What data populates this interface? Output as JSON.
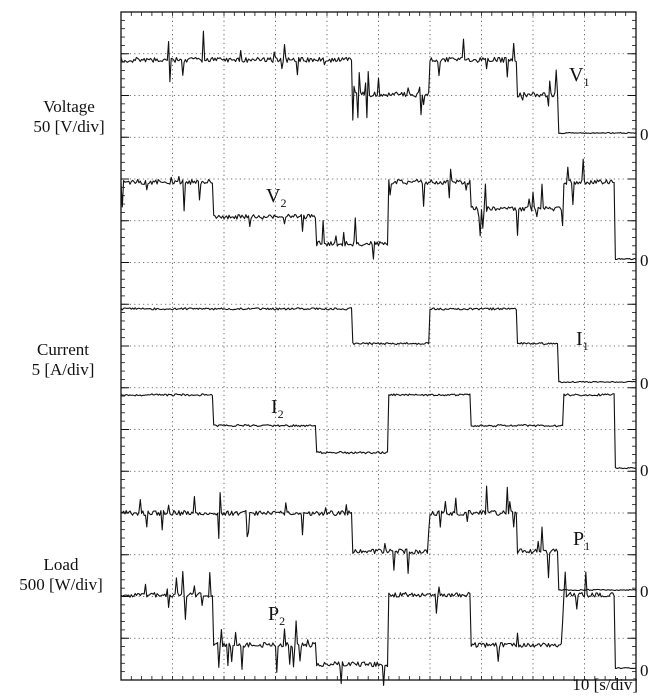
{
  "chart_data": {
    "type": "line",
    "x_scale_label": "10 [s/div]",
    "x_divisions": 10,
    "channel_groups": [
      {
        "name": "Voltage",
        "scale": "50 [V/div]"
      },
      {
        "name": "Current",
        "scale": "5 [A/div]"
      },
      {
        "name": "Load",
        "scale": "500 [W/div]"
      }
    ],
    "zero_marker": "0",
    "series": [
      {
        "name": "V",
        "sub": "1",
        "group": "Voltage",
        "noise": "high",
        "steps": [
          [
            0,
            1.9
          ],
          [
            45,
            1.0
          ],
          [
            60,
            1.9
          ],
          [
            77,
            1.0
          ],
          [
            85,
            0.0
          ]
        ]
      },
      {
        "name": "V",
        "sub": "2",
        "group": "Voltage",
        "noise": "high",
        "steps": [
          [
            0,
            2.0
          ],
          [
            18,
            1.1
          ],
          [
            38,
            0.4
          ],
          [
            52,
            2.0
          ],
          [
            68,
            1.3
          ],
          [
            86,
            2.0
          ],
          [
            96,
            0.0
          ]
        ]
      },
      {
        "name": "I",
        "sub": "1",
        "group": "Current",
        "noise": "low",
        "steps": [
          [
            0,
            1.9
          ],
          [
            45,
            1.0
          ],
          [
            60,
            1.9
          ],
          [
            77,
            1.0
          ],
          [
            85,
            0.0
          ]
        ]
      },
      {
        "name": "I",
        "sub": "2",
        "group": "Current",
        "noise": "low",
        "steps": [
          [
            0,
            1.9
          ],
          [
            18,
            1.1
          ],
          [
            38,
            0.4
          ],
          [
            52,
            1.9
          ],
          [
            68,
            1.1
          ],
          [
            86,
            1.9
          ],
          [
            96,
            0.0
          ]
        ]
      },
      {
        "name": "P",
        "sub": "1",
        "group": "Load",
        "noise": "high",
        "steps": [
          [
            0,
            2.0
          ],
          [
            45,
            1.0
          ],
          [
            60,
            2.0
          ],
          [
            77,
            1.0
          ],
          [
            85,
            0.0
          ]
        ]
      },
      {
        "name": "P",
        "sub": "2",
        "group": "Load",
        "noise": "high",
        "steps": [
          [
            0,
            1.9
          ],
          [
            18,
            0.6
          ],
          [
            38,
            0.1
          ],
          [
            52,
            1.9
          ],
          [
            68,
            0.6
          ],
          [
            86,
            1.9
          ],
          [
            96,
            0.0
          ]
        ]
      }
    ]
  }
}
